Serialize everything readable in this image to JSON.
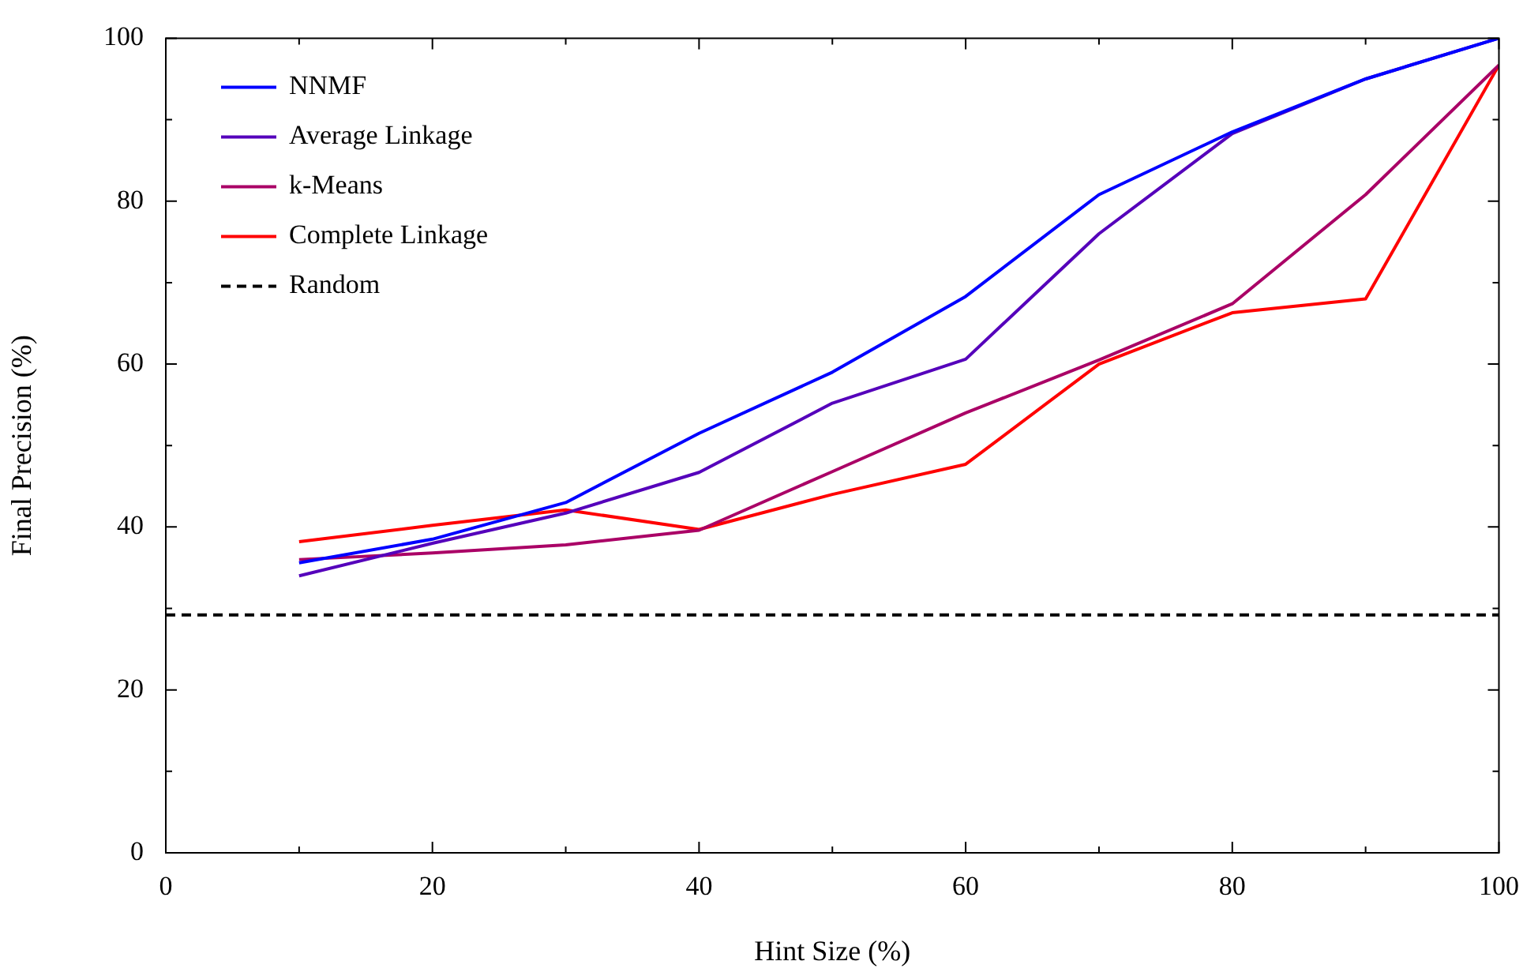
{
  "chart_data": {
    "type": "line",
    "xlabel": "Hint Size (%)",
    "ylabel": "Final Precision (%)",
    "x": [
      10,
      20,
      30,
      40,
      50,
      60,
      70,
      80,
      90,
      100
    ],
    "series": [
      {
        "name": "NNMF",
        "color": "#0000ff",
        "values": [
          35.6,
          38.5,
          43,
          51.5,
          59,
          68.3,
          80.8,
          88.5,
          95,
          100
        ]
      },
      {
        "name": "Average Linkage",
        "color": "#5500bb",
        "values": [
          34,
          38,
          41.7,
          46.7,
          55.2,
          60.6,
          76,
          88.3,
          95,
          100
        ]
      },
      {
        "name": "k-Means",
        "color": "#aa0066",
        "values": [
          36,
          36.8,
          37.8,
          39.6,
          46.8,
          54,
          60.5,
          67.4,
          80.8,
          96.7
        ]
      },
      {
        "name": "Complete Linkage",
        "color": "#ff0000",
        "values": [
          38.2,
          40.2,
          42.1,
          39.7,
          44,
          47.7,
          60,
          66.3,
          68,
          96.7
        ]
      },
      {
        "name": "Random",
        "color": "#000000",
        "x": [
          0,
          100
        ],
        "values": [
          29.2,
          29.2
        ],
        "line_style": "dashed"
      }
    ],
    "xlim": [
      0,
      100
    ],
    "xticks": [
      0,
      {
        "value": 10,
        "label": null
      },
      20,
      {
        "value": 30,
        "label": null
      },
      40,
      {
        "value": 50,
        "label": null
      },
      60,
      {
        "value": 70,
        "label": null
      },
      80,
      {
        "value": 90,
        "label": null
      },
      100
    ],
    "ylim": [
      0,
      100
    ],
    "yticks": [
      0,
      {
        "value": 10,
        "label": null
      },
      20,
      {
        "value": 30,
        "label": null
      },
      40,
      {
        "value": 50,
        "label": null
      },
      60,
      {
        "value": 70,
        "label": null
      },
      80,
      {
        "value": 90,
        "label": null
      },
      100
    ],
    "grid": false,
    "legend": "top left",
    "marker": "none",
    "line_style": "solid"
  }
}
